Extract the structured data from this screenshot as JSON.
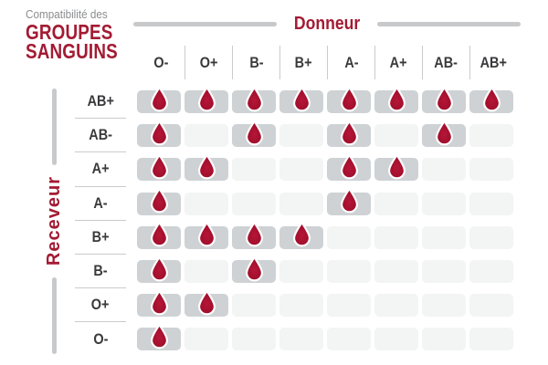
{
  "title": {
    "line1": "Compatibilité des",
    "line2": "GROUPES",
    "line3": "SANGUINS"
  },
  "axes": {
    "donor_label": "Donneur",
    "receiver_label": "Receveur"
  },
  "icons": {
    "compatible_marker": "blood-drop-icon"
  },
  "colors": {
    "accent_red": "#a31b33",
    "drop_center": "#b51637",
    "drop_mid": "#a30f2d",
    "drop_edge": "#8c0a24",
    "drop_outline": "#ffffff",
    "cell_compatible_bg": "#ced2d4",
    "cell_incompatible_bg": "#f3f4f4",
    "divider_gray": "#c9cbcd",
    "thick_line_gray": "#c7c9cb",
    "label_dark": "#3a3a3c",
    "subtitle_gray": "#8a8c8e"
  },
  "chart_data": {
    "type": "heatmap",
    "title": "Compatibilité des GROUPES SANGUINS",
    "xlabel": "Donneur",
    "ylabel": "Receveur",
    "x_categories": [
      "O-",
      "O+",
      "B-",
      "B+",
      "A-",
      "A+",
      "AB-",
      "AB+"
    ],
    "y_categories": [
      "AB+",
      "AB-",
      "A+",
      "A-",
      "B+",
      "B-",
      "O+",
      "O-"
    ],
    "values": [
      [
        1,
        1,
        1,
        1,
        1,
        1,
        1,
        1
      ],
      [
        1,
        0,
        1,
        0,
        1,
        0,
        1,
        0
      ],
      [
        1,
        1,
        0,
        0,
        1,
        1,
        0,
        0
      ],
      [
        1,
        0,
        0,
        0,
        1,
        0,
        0,
        0
      ],
      [
        1,
        1,
        1,
        1,
        0,
        0,
        0,
        0
      ],
      [
        1,
        0,
        1,
        0,
        0,
        0,
        0,
        0
      ],
      [
        1,
        1,
        0,
        0,
        0,
        0,
        0,
        0
      ],
      [
        1,
        0,
        0,
        0,
        0,
        0,
        0,
        0
      ]
    ],
    "value_meaning": {
      "1": "compatible — red blood drop on gray cell",
      "0": "not compatible — empty light-gray cell"
    },
    "legend": "none",
    "grid": "off"
  }
}
